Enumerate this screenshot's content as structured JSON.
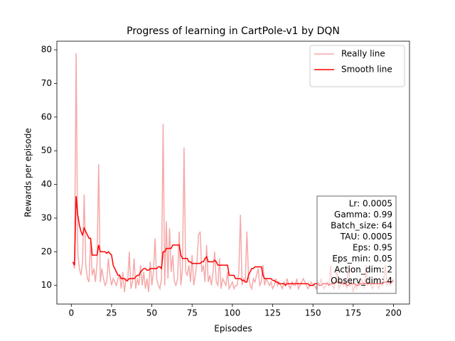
{
  "chart_data": {
    "type": "line",
    "title": "Progress of learning in CartPole-v1 by DQN",
    "xlabel": "Episodes",
    "ylabel": "Rewards per episode",
    "x": [
      1,
      2,
      3,
      4,
      5,
      6,
      7,
      8,
      9,
      10,
      11,
      12,
      13,
      14,
      15,
      16,
      17,
      18,
      19,
      20,
      21,
      22,
      23,
      24,
      25,
      26,
      27,
      28,
      29,
      30,
      31,
      32,
      33,
      34,
      35,
      36,
      37,
      38,
      39,
      40,
      41,
      42,
      43,
      44,
      45,
      46,
      47,
      48,
      49,
      50,
      51,
      52,
      53,
      54,
      55,
      56,
      57,
      58,
      59,
      60,
      61,
      62,
      63,
      64,
      65,
      66,
      67,
      68,
      69,
      70,
      71,
      72,
      73,
      74,
      75,
      76,
      77,
      78,
      79,
      80,
      81,
      82,
      83,
      84,
      85,
      86,
      87,
      88,
      89,
      90,
      91,
      92,
      93,
      94,
      95,
      96,
      97,
      98,
      99,
      100,
      101,
      102,
      103,
      104,
      105,
      106,
      107,
      108,
      109,
      110,
      111,
      112,
      113,
      114,
      115,
      116,
      117,
      118,
      119,
      120,
      121,
      122,
      123,
      124,
      125,
      126,
      127,
      128,
      129,
      130,
      131,
      132,
      133,
      134,
      135,
      136,
      137,
      138,
      139,
      140,
      141,
      142,
      143,
      144,
      145,
      146,
      147,
      148,
      149,
      150,
      151,
      152,
      153,
      154,
      155,
      156,
      157,
      158,
      159,
      160,
      161,
      162,
      163,
      164,
      165,
      166,
      167,
      168,
      169,
      170,
      171,
      172,
      173,
      174,
      175,
      176,
      177,
      178,
      179,
      180,
      181,
      182,
      183,
      184,
      185,
      186,
      187,
      188,
      189,
      190,
      191,
      192,
      193,
      194,
      195,
      196,
      197,
      198,
      199,
      200
    ],
    "series": [
      {
        "name": "Really line",
        "color": "#f5a9a9",
        "values": [
          17,
          15,
          79,
          20,
          15,
          13,
          17,
          37,
          16,
          12,
          11,
          24,
          13,
          15,
          11,
          17,
          46,
          11,
          15,
          12,
          10,
          11,
          18,
          13,
          10,
          12,
          11,
          10,
          12,
          13,
          9,
          14,
          8,
          12,
          11,
          20,
          9,
          11,
          18,
          9,
          12,
          10,
          16,
          10,
          14,
          9,
          12,
          8,
          17,
          10,
          14,
          24,
          12,
          10,
          9,
          12,
          58,
          10,
          29,
          12,
          27,
          14,
          19,
          11,
          10,
          12,
          26,
          10,
          15,
          51,
          14,
          13,
          16,
          11,
          19,
          10,
          13,
          17,
          25,
          26,
          14,
          16,
          11,
          22,
          11,
          13,
          10,
          14,
          20,
          11,
          10,
          18,
          9,
          12,
          11,
          10,
          14,
          9,
          10,
          11,
          9,
          10,
          10,
          14,
          31,
          10,
          12,
          11,
          26,
          13,
          10,
          9,
          12,
          11,
          13,
          15,
          10,
          11,
          16,
          10,
          12,
          11,
          10,
          11,
          9,
          10,
          12,
          10,
          11,
          10,
          9,
          11,
          10,
          12,
          10,
          9,
          11,
          10,
          10,
          12,
          9,
          10,
          11,
          12,
          11,
          10,
          9,
          10,
          11,
          10,
          10,
          9,
          11,
          10,
          12,
          10,
          9,
          10,
          11,
          10,
          16,
          10,
          9,
          11,
          15,
          9,
          10,
          11,
          10,
          12,
          9,
          16,
          10,
          11,
          8,
          10,
          9,
          11,
          10,
          12,
          11,
          9,
          16,
          10,
          11,
          10,
          9,
          11,
          12,
          10,
          9,
          11,
          10,
          12,
          16,
          10,
          11,
          10,
          11,
          12
        ]
      },
      {
        "name": "Smooth line",
        "color": "#ff0000",
        "values": [
          17,
          16,
          36.5,
          31,
          28,
          26,
          25,
          27,
          26,
          25,
          24,
          24,
          19,
          19,
          19,
          19,
          22,
          20,
          20,
          20,
          20,
          19.5,
          20,
          19.5,
          19,
          16,
          15,
          14,
          13,
          13,
          12,
          12,
          12,
          11.5,
          11.5,
          12,
          12,
          12,
          12,
          12.5,
          13,
          13,
          14,
          14.5,
          15,
          15,
          14.5,
          14.5,
          15,
          15,
          15,
          15,
          15,
          15.5,
          15.5,
          15,
          20,
          20,
          21,
          21,
          21,
          21,
          22,
          22,
          22,
          22,
          22,
          19,
          18,
          18,
          18,
          18,
          17,
          17,
          16.5,
          16.5,
          16.5,
          16.5,
          16.5,
          16.5,
          17,
          17,
          18,
          18.5,
          17,
          17,
          17,
          17,
          17.5,
          17,
          16,
          16,
          16,
          16,
          16,
          16,
          16,
          13,
          13,
          13,
          13,
          12,
          12,
          12,
          12,
          11.5,
          11.5,
          11,
          11,
          13,
          14,
          15,
          15,
          15.5,
          15.5,
          15.5,
          15.5,
          15.5,
          13,
          12,
          12,
          12,
          12,
          12,
          11.5,
          11.5,
          11,
          11,
          10.5,
          10.5,
          10.5,
          10.5,
          10,
          10.5,
          10.5,
          10.5,
          10.5,
          10.5,
          10.5,
          10.5,
          10.5,
          10.5,
          10.5,
          10.5,
          10.5,
          10.5,
          10.5,
          10,
          10,
          10,
          10.5,
          10.5,
          10.5,
          10,
          10,
          10.5,
          10.5,
          10.5,
          10.5,
          10,
          10.5,
          10.5,
          10.5,
          11,
          11,
          11,
          11,
          10.5,
          10.5,
          10.5,
          10,
          10,
          10.5,
          10.5,
          10.5,
          10.5,
          10,
          10,
          10.5,
          10.5,
          10.5,
          10.5,
          10.5,
          10.5,
          10.5,
          10.5,
          10.5,
          10.5,
          10.5,
          10.5,
          10.5,
          10.5,
          10.5,
          11,
          11,
          11,
          11,
          11,
          11,
          11.5
        ]
      }
    ],
    "xlim": [
      -8.95,
      209.95
    ],
    "ylim": [
      4.45,
      82.55
    ],
    "xticks": [
      0,
      25,
      50,
      75,
      100,
      125,
      150,
      175,
      200
    ],
    "yticks": [
      10,
      20,
      30,
      40,
      50,
      60,
      70,
      80
    ],
    "legend": "upper right",
    "grid": false,
    "annotation_box": [
      "Lr: 0.0005",
      "Gamma: 0.99",
      "Batch_size: 64",
      "TAU: 0.0005",
      "Eps: 0.95",
      "Eps_min: 0.05",
      "Action_dim: 2",
      "Observ_dim: 4"
    ]
  }
}
